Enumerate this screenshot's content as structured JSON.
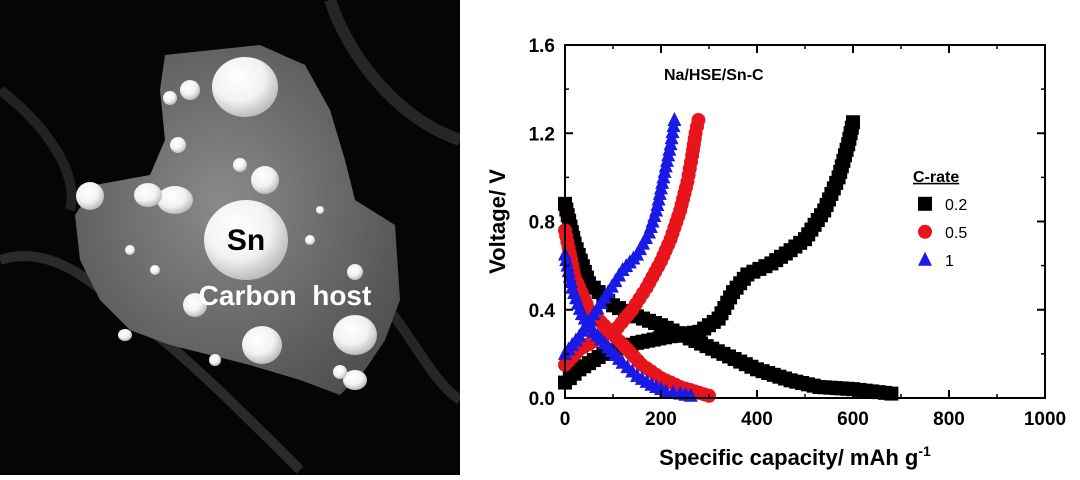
{
  "micrograph": {
    "labels": {
      "sn": "Sn",
      "carbon_host": "Carbon  host"
    }
  },
  "chart_data": {
    "type": "scatter",
    "title": "Na/HSE/Sn-C",
    "xlabel": "Specific capacity/ mAh g",
    "xlabel_superscript": "-1",
    "ylabel": "Voltage/ V",
    "xlim": [
      0,
      1000
    ],
    "ylim": [
      0.0,
      1.6
    ],
    "xticks": [
      "0",
      "200",
      "400",
      "600",
      "800",
      "1000"
    ],
    "yticks": [
      "0.0",
      "0.4",
      "0.8",
      "1.2",
      "1.6"
    ],
    "legend": {
      "title": "C-rate",
      "position": "right-middle"
    },
    "series": [
      {
        "name": "0.2",
        "marker": "square",
        "color": "#000000",
        "segments": [
          {
            "x": [
              0,
              20,
              50,
              100,
              150,
              200,
              260,
              330,
              400,
              470,
              530,
              600,
              640,
              680
            ],
            "y": [
              0.88,
              0.7,
              0.52,
              0.42,
              0.37,
              0.33,
              0.27,
              0.2,
              0.13,
              0.08,
              0.05,
              0.04,
              0.03,
              0.02
            ]
          },
          {
            "x": [
              0,
              30,
              80,
              150,
              220,
              280,
              320,
              350,
              380,
              430,
              470,
              500,
              540,
              570,
              590,
              600
            ],
            "y": [
              0.07,
              0.13,
              0.2,
              0.25,
              0.28,
              0.3,
              0.36,
              0.48,
              0.56,
              0.61,
              0.67,
              0.72,
              0.85,
              1.0,
              1.15,
              1.25
            ]
          }
        ]
      },
      {
        "name": "0.5",
        "marker": "circle",
        "color": "#e8141c",
        "segments": [
          {
            "x": [
              0,
              20,
              50,
              90,
              130,
              160,
              200,
              240,
              270,
              300
            ],
            "y": [
              0.76,
              0.55,
              0.4,
              0.31,
              0.22,
              0.15,
              0.09,
              0.05,
              0.03,
              0.01
            ]
          },
          {
            "x": [
              0,
              30,
              70,
              110,
              140,
              170,
              200,
              220,
              240,
              255,
              265,
              272,
              278
            ],
            "y": [
              0.15,
              0.22,
              0.27,
              0.32,
              0.4,
              0.5,
              0.62,
              0.72,
              0.85,
              0.98,
              1.1,
              1.2,
              1.26
            ]
          }
        ]
      },
      {
        "name": "1",
        "marker": "triangle",
        "color": "#1a1ae6",
        "segments": [
          {
            "x": [
              0,
              15,
              35,
              60,
              90,
              120,
              150,
              180,
              210,
              240,
              262
            ],
            "y": [
              0.65,
              0.5,
              0.38,
              0.3,
              0.23,
              0.16,
              0.1,
              0.06,
              0.03,
              0.02,
              0.01
            ]
          },
          {
            "x": [
              0,
              30,
              60,
              90,
              120,
              150,
              175,
              190,
              200,
              210,
              220,
              228
            ],
            "y": [
              0.2,
              0.28,
              0.38,
              0.48,
              0.58,
              0.65,
              0.75,
              0.85,
              0.95,
              1.05,
              1.15,
              1.26
            ]
          }
        ]
      }
    ]
  }
}
